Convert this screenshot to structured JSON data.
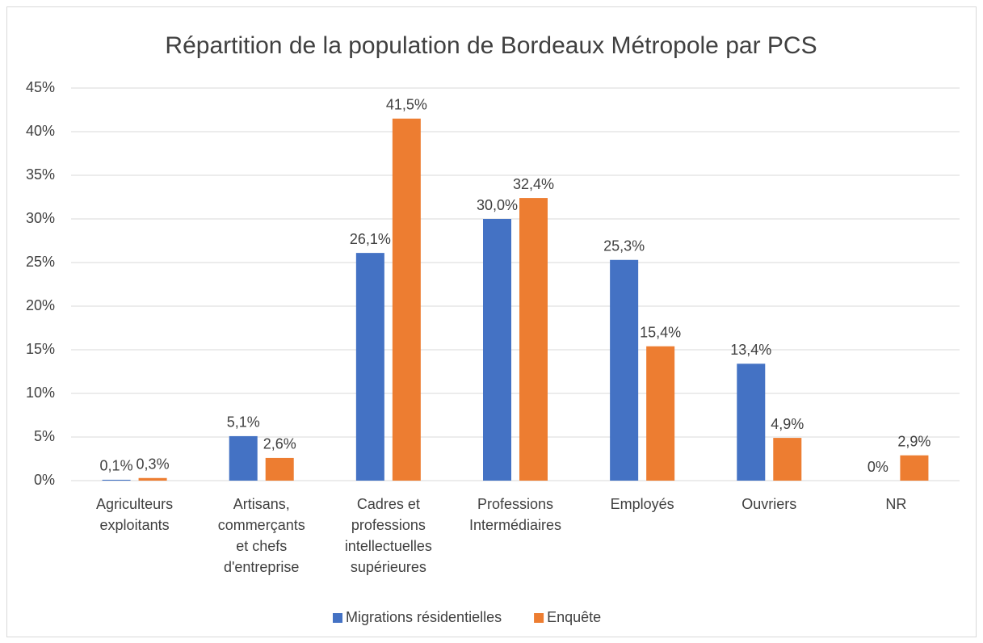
{
  "chart_data": {
    "type": "bar",
    "title": "Répartition de la population de Bordeaux Métropole par PCS",
    "categories": [
      [
        "Agriculteurs",
        "exploitants"
      ],
      [
        "Artisans,",
        "commerçants",
        "et chefs",
        "d'entreprise"
      ],
      [
        "Cadres et",
        "professions",
        "intellectuelles",
        "supérieures"
      ],
      [
        "Professions",
        "Intermédiaires"
      ],
      [
        "Employés"
      ],
      [
        "Ouvriers"
      ],
      [
        "NR"
      ]
    ],
    "series": [
      {
        "name": "Migrations résidentielles",
        "color": "#4472c4",
        "values": [
          0.1,
          5.1,
          26.1,
          30.0,
          25.3,
          13.4,
          0
        ],
        "value_labels": [
          "0,1%",
          "5,1%",
          "26,1%",
          "30,0%",
          "25,3%",
          "13,4%",
          "0%"
        ]
      },
      {
        "name": "Enquête",
        "color": "#ed7d31",
        "values": [
          0.3,
          2.6,
          41.5,
          32.4,
          15.4,
          4.9,
          2.9
        ],
        "value_labels": [
          "0,3%",
          "2,6%",
          "41,5%",
          "32,4%",
          "15,4%",
          "4,9%",
          "2,9%"
        ]
      }
    ],
    "ylim": [
      0,
      45
    ],
    "yticks": [
      {
        "value": 0,
        "label": "0%"
      },
      {
        "value": 5,
        "label": "5%"
      },
      {
        "value": 10,
        "label": "10%"
      },
      {
        "value": 15,
        "label": "15%"
      },
      {
        "value": 20,
        "label": "20%"
      },
      {
        "value": 25,
        "label": "25%"
      },
      {
        "value": 30,
        "label": "30%"
      },
      {
        "value": 35,
        "label": "35%"
      },
      {
        "value": 40,
        "label": "40%"
      },
      {
        "value": 45,
        "label": "45%"
      }
    ],
    "grid": true,
    "legend": "bottom"
  }
}
